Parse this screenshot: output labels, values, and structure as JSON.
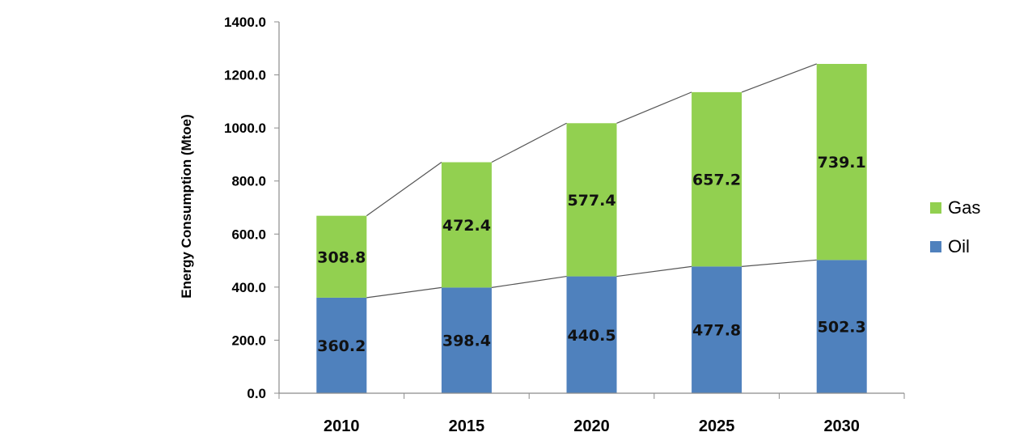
{
  "chart_data": {
    "type": "bar",
    "stacked": true,
    "categories": [
      "2010",
      "2015",
      "2020",
      "2025",
      "2030"
    ],
    "series": [
      {
        "name": "Oil",
        "values": [
          360.2,
          398.4,
          440.5,
          477.8,
          502.3
        ],
        "color": "#4f81bd"
      },
      {
        "name": "Gas",
        "values": [
          308.8,
          472.4,
          577.4,
          657.2,
          739.1
        ],
        "color": "#92d050"
      }
    ],
    "ylabel": "Energy Consumption  (Mtoe)",
    "xlabel": "",
    "ylim": [
      0,
      1400
    ],
    "yticks": [
      "0.0",
      "200.0",
      "400.0",
      "600.0",
      "800.0",
      "1000.0",
      "1200.0",
      "1400.0"
    ],
    "data_labels": {
      "Oil": [
        "360.2",
        "398.4",
        "440.5",
        "477.8",
        "502.3"
      ],
      "Gas": [
        "308.8",
        "472.4",
        "577.4",
        "657.2",
        "739.1"
      ]
    },
    "legend_position": "right",
    "legend_order": [
      "Gas",
      "Oil"
    ],
    "series_lines": true,
    "grid": false
  }
}
